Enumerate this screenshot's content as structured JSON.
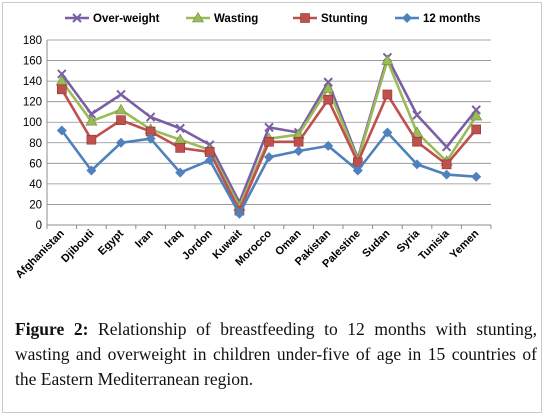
{
  "chart_data": {
    "type": "line",
    "title": "",
    "xlabel": "",
    "ylabel": "",
    "ylim": [
      0,
      180
    ],
    "yticks": [
      0,
      20,
      40,
      60,
      80,
      100,
      120,
      140,
      160,
      180
    ],
    "grid": "horizontal",
    "legend_position": "top",
    "categories": [
      "Afghanistan",
      "Djibouti",
      "Egypt",
      "Iran",
      "Iraq",
      "Jordon",
      "Kuwait",
      "Morocco",
      "Oman",
      "Pakistan",
      "Palestine",
      "Sudan",
      "Syria",
      "Tunisia",
      "Yemen"
    ],
    "series": [
      {
        "name": "Over-weight",
        "color": "#7b5fa6",
        "marker": "x",
        "values": [
          147,
          108,
          127,
          105,
          94,
          78,
          22,
          95,
          90,
          139,
          65,
          163,
          107,
          76,
          112
        ]
      },
      {
        "name": "Wasting",
        "color": "#9bbb59",
        "marker": "triangle",
        "values": [
          140,
          101,
          112,
          93,
          83,
          73,
          18,
          84,
          88,
          133,
          63,
          160,
          90,
          62,
          106
        ]
      },
      {
        "name": "Stunting",
        "color": "#c0504d",
        "marker": "square",
        "values": [
          132,
          83,
          102,
          91,
          75,
          71,
          14,
          81,
          81,
          122,
          61,
          127,
          81,
          59,
          93
        ]
      },
      {
        "name": "12 months",
        "color": "#4f81bd",
        "marker": "diamond",
        "values": [
          92,
          53,
          80,
          84,
          51,
          63,
          11,
          66,
          72,
          77,
          53,
          90,
          59,
          49,
          47
        ]
      }
    ]
  },
  "caption": {
    "label": "Figure 2:",
    "text": "Relationship of breastfeeding to 12 months with stunting, wasting and overweight in children under-five of age in 15 countries of the Eastern Mediterranean region."
  }
}
